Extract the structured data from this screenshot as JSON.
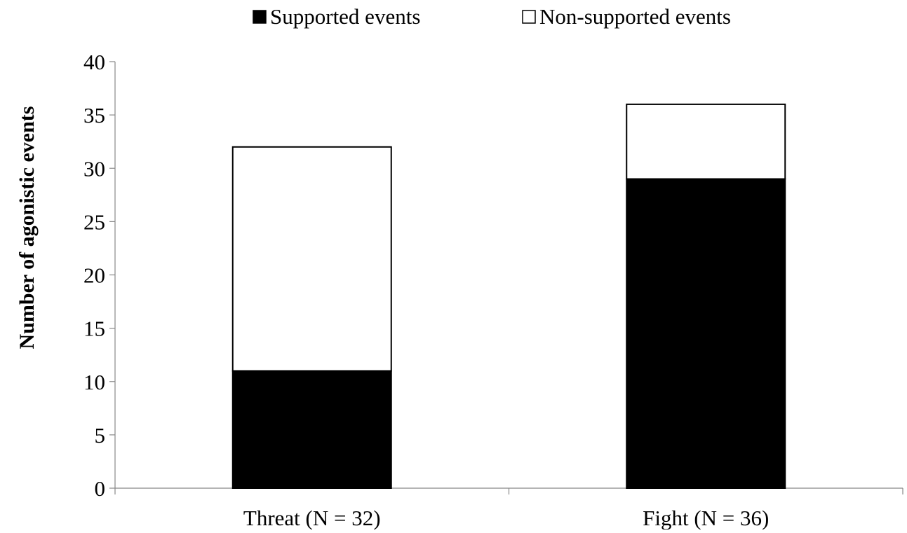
{
  "chart_data": {
    "type": "bar",
    "stacked": true,
    "categories": [
      "Threat (N = 32)",
      "Fight (N = 36)"
    ],
    "series": [
      {
        "name": "Supported events",
        "values": [
          11,
          29
        ],
        "color": "#000000"
      },
      {
        "name": "Non-supported events",
        "values": [
          21,
          7
        ],
        "color": "#ffffff"
      }
    ],
    "totals": [
      32,
      36
    ],
    "title": "",
    "xlabel": "",
    "ylabel": "Number of  agonistic  events",
    "ylim": [
      0,
      40
    ],
    "yticks": [
      0,
      5,
      10,
      15,
      20,
      25,
      30,
      35,
      40
    ],
    "grid": false,
    "legend_position": "top-center"
  }
}
